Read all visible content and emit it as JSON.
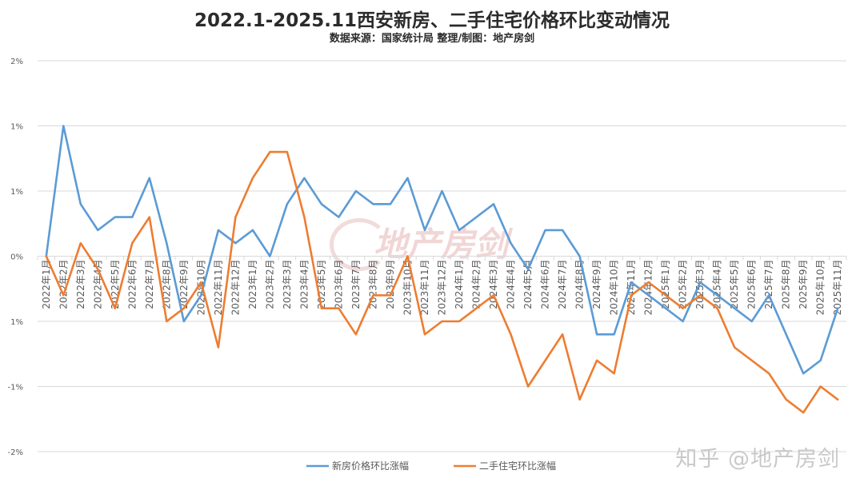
{
  "title": "2022.1-2025.11西安新房、二手住宅价格环比变动情况",
  "subtitle": "数据来源：国家统计局   整理/制图：地产房剑",
  "watermark": "知乎 @地产房剑",
  "center_watermark": "地产房剑",
  "colors": {
    "new_home": "#5b9bd5",
    "second_hand": "#ed7d31",
    "grid": "#d9d9d9",
    "axis_text": "#595959"
  },
  "chart_data": {
    "type": "line",
    "y_tick_labels": [
      "2%",
      "1%",
      "1%",
      "0%",
      "1%",
      "-1%",
      "-2%"
    ],
    "ylim": [
      -1.5,
      1.5
    ],
    "grid": true,
    "legend_position": "bottom",
    "categories": [
      "2022年1月",
      "2022年2月",
      "2022年3月",
      "2022年4月",
      "2022年5月",
      "2022年6月",
      "2022年7月",
      "2022年8月",
      "2022年9月",
      "2022年10月",
      "2022年11月",
      "2022年12月",
      "2023年1月",
      "2023年2月",
      "2023年3月",
      "2023年4月",
      "2023年5月",
      "2023年6月",
      "2023年7月",
      "2023年8月",
      "2023年9月",
      "2023年10月",
      "2023年11月",
      "2023年12月",
      "2024年1月",
      "2024年2月",
      "2024年3月",
      "2024年4月",
      "2024年5月",
      "2024年6月",
      "2024年7月",
      "2024年8月",
      "2024年9月",
      "2024年10月",
      "2024年11月",
      "2024年12月",
      "2025年1月",
      "2025年2月",
      "2025年3月",
      "2025年4月",
      "2025年5月",
      "2025年6月",
      "2025年7月",
      "2025年8月",
      "2025年9月",
      "2025年10月",
      "2025年11月"
    ],
    "series": [
      {
        "name": "新房价格环比涨幅",
        "values": [
          0.0,
          1.0,
          0.4,
          0.2,
          0.3,
          0.3,
          0.6,
          0.1,
          -0.5,
          -0.3,
          0.2,
          0.1,
          0.2,
          0.0,
          0.4,
          0.6,
          0.4,
          0.3,
          0.5,
          0.4,
          0.4,
          0.6,
          0.2,
          0.5,
          0.2,
          0.3,
          0.4,
          0.1,
          -0.1,
          0.2,
          0.2,
          0.0,
          -0.6,
          -0.6,
          -0.2,
          -0.3,
          -0.4,
          -0.5,
          -0.2,
          -0.3,
          -0.4,
          -0.5,
          -0.3,
          -0.6,
          -0.9,
          -0.8,
          -0.4
        ]
      },
      {
        "name": "二手住宅环比涨幅",
        "values": [
          0.0,
          -0.3,
          0.1,
          -0.1,
          -0.4,
          0.1,
          0.3,
          -0.5,
          -0.4,
          -0.2,
          -0.7,
          0.3,
          0.6,
          0.8,
          0.8,
          0.3,
          -0.4,
          -0.4,
          -0.6,
          -0.3,
          -0.3,
          0.0,
          -0.6,
          -0.5,
          -0.5,
          -0.4,
          -0.3,
          -0.6,
          -1.0,
          -0.8,
          -0.6,
          -1.1,
          -0.8,
          -0.9,
          -0.3,
          -0.2,
          -0.3,
          -0.4,
          -0.3,
          -0.4,
          -0.7,
          -0.8,
          -0.9,
          -1.1,
          -1.2,
          -1.0,
          -1.1
        ]
      }
    ]
  }
}
